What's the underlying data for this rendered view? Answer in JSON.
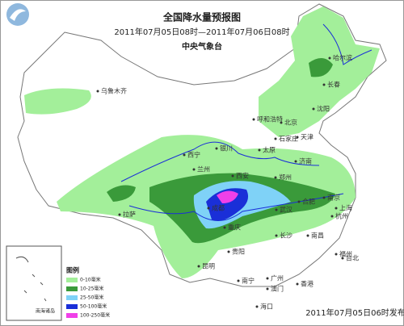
{
  "header": {
    "title": "全国降水量预报图",
    "period": "2011年07月05日08时—2011年07月06日08时",
    "issuer": "中央气象台"
  },
  "cities": [
    "乌鲁木齐",
    "哈尔滨",
    "长春",
    "沈阳",
    "呼和浩特",
    "北京",
    "天津",
    "石家庄",
    "太原",
    "银川",
    "西宁",
    "兰州",
    "济南",
    "郑州",
    "西安",
    "合肥",
    "南京",
    "上海",
    "杭州",
    "武汉",
    "成都",
    "重庆",
    "长沙",
    "南昌",
    "福州",
    "贵阳",
    "昆明",
    "南宁",
    "广州",
    "香港",
    "澳门",
    "海口",
    "台北",
    "拉萨"
  ],
  "inset": {
    "label": "南海诸岛"
  },
  "legend": {
    "title": "图例",
    "items": [
      {
        "label": "0-10毫米",
        "color": "#a3ef9a"
      },
      {
        "label": "10-25毫米",
        "color": "#3a9a3a"
      },
      {
        "label": "25-50毫米",
        "color": "#7fd2f7"
      },
      {
        "label": "50-100毫米",
        "color": "#1a2fd8"
      },
      {
        "label": "100-250毫米",
        "color": "#f040e8"
      }
    ]
  },
  "footer": {
    "issued": "2011年07月05日06时发布"
  }
}
